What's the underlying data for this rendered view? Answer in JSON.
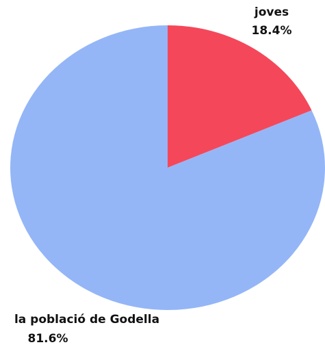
{
  "chart_data": {
    "type": "pie",
    "categories": [
      "joves",
      "la població de Godella"
    ],
    "values": [
      18.4,
      81.6
    ],
    "value_labels": [
      "18.4%",
      "81.6%"
    ],
    "colors": [
      "#f5475a",
      "#94b6f7"
    ]
  }
}
